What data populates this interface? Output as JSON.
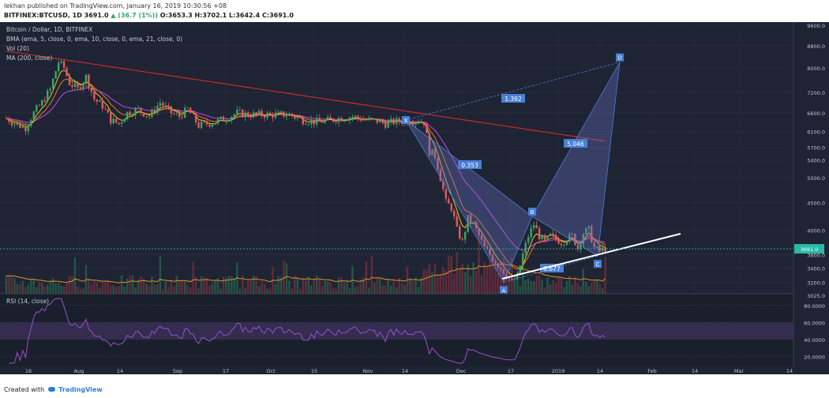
{
  "header": {
    "publish_line": "lekhan published on TradingView.com, January 16, 2019 10:30:56 +08",
    "symbol": "BITFINEX:BTCUSD, 1D",
    "last": "3691.0",
    "change": "▲ (36.7 (1%))",
    "open": "O:3653.3",
    "high": "H:3702.1",
    "low": "L:3642.4",
    "close": "C:3691.0"
  },
  "colors": {
    "background": "#1e2433",
    "up_candle": "#3aa66b",
    "down_candle": "#e05c5c",
    "sma200": "#c82a2a",
    "ema5": "#f0c419",
    "ema10": "#e07a2a",
    "ema21": "#b23fcf",
    "volume_ma": "#e0902a",
    "rsi_line": "#9a4fcf",
    "rsi_band": "#4a3870",
    "pattern_fill": "#6673c8",
    "pattern_line": "#4a7fd4",
    "trendline": "#ffffff",
    "price_marker": "#2bb8a6"
  },
  "chart_data": {
    "type": "candlestick",
    "title": "Bitcoin / Dollar, 1D, BITFINEX",
    "overlays": [
      "BMA (ema, 5, close, 0, ema, 10, close, 0, ema, 21, close, 0)",
      "MA (200, close)"
    ],
    "volume_label": "Vol (20)",
    "y_axis_scale": "log",
    "y_ticks": [
      3025.0,
      3200.0,
      3400.0,
      3600.0,
      4000.0,
      4500.0,
      5000.0,
      5400.0,
      5700.0,
      6100.0,
      6600.0,
      7200.0,
      8000.0,
      8800.0,
      9600.0
    ],
    "y_tick_labels": [
      "3025.0",
      "3200.0",
      "3400.0",
      "3600.0",
      "4000.0",
      "4500.0",
      "5000.0",
      "5400.0",
      "5700.0",
      "6100.0",
      "6600.0",
      "7200.0",
      "8000.0",
      "8800.0",
      "9600.0"
    ],
    "x_tick_labels": [
      "16",
      "Aug",
      "14",
      "Sep",
      "17",
      "Oct",
      "15",
      "Nov",
      "14",
      "Dec",
      "17",
      "2019",
      "14",
      "Feb",
      "14",
      "Mar",
      "14"
    ],
    "last_price": "3691.0",
    "price_anchors": [
      [
        0,
        6450
      ],
      [
        6,
        6300
      ],
      [
        14,
        6200
      ],
      [
        20,
        6600
      ],
      [
        26,
        6900
      ],
      [
        32,
        7300
      ],
      [
        38,
        8200
      ],
      [
        42,
        8000
      ],
      [
        46,
        7500
      ],
      [
        52,
        7300
      ],
      [
        58,
        7700
      ],
      [
        64,
        7000
      ],
      [
        70,
        6800
      ],
      [
        76,
        6400
      ],
      [
        82,
        6300
      ],
      [
        88,
        6600
      ],
      [
        96,
        6700
      ],
      [
        104,
        6500
      ],
      [
        112,
        6900
      ],
      [
        120,
        6600
      ],
      [
        126,
        6500
      ],
      [
        132,
        6700
      ],
      [
        140,
        6250
      ],
      [
        146,
        6300
      ],
      [
        152,
        6350
      ],
      [
        160,
        6450
      ],
      [
        168,
        6600
      ],
      [
        176,
        6550
      ],
      [
        186,
        6550
      ],
      [
        196,
        6550
      ],
      [
        206,
        6550
      ],
      [
        216,
        6400
      ],
      [
        226,
        6350
      ],
      [
        236,
        6400
      ],
      [
        242,
        6450
      ],
      [
        252,
        6500
      ],
      [
        262,
        6400
      ],
      [
        270,
        6380
      ],
      [
        276,
        6300
      ],
      [
        282,
        6350
      ],
      [
        290,
        6380
      ],
      [
        300,
        6400
      ],
      [
        304,
        6350
      ],
      [
        308,
        5600
      ],
      [
        312,
        5500
      ],
      [
        316,
        5000
      ],
      [
        320,
        4500
      ],
      [
        324,
        4400
      ],
      [
        328,
        4000
      ],
      [
        332,
        3800
      ],
      [
        336,
        4200
      ],
      [
        340,
        4100
      ],
      [
        344,
        3900
      ],
      [
        348,
        3700
      ],
      [
        352,
        3600
      ],
      [
        356,
        3500
      ],
      [
        360,
        3400
      ],
      [
        364,
        3300
      ],
      [
        368,
        3200
      ],
      [
        372,
        3280
      ],
      [
        376,
        3600
      ],
      [
        380,
        3900
      ],
      [
        384,
        4100
      ],
      [
        388,
        3900
      ],
      [
        392,
        3800
      ],
      [
        396,
        3900
      ],
      [
        400,
        3850
      ],
      [
        404,
        3800
      ],
      [
        408,
        3850
      ],
      [
        412,
        3900
      ],
      [
        416,
        3700
      ],
      [
        420,
        3950
      ],
      [
        424,
        4000
      ],
      [
        428,
        3700
      ],
      [
        432,
        3650
      ],
      [
        436,
        3700
      ]
    ],
    "harmonic_pattern": {
      "points": [
        {
          "label": "X",
          "price": 6400
        },
        {
          "label": "A",
          "price": 3200
        },
        {
          "label": "B",
          "price": 4240
        },
        {
          "label": "C",
          "price": 3580
        },
        {
          "label": "D",
          "price": 8200
        }
      ],
      "ratios": [
        "1.392",
        "0.353",
        "5.046",
        "0.677"
      ]
    },
    "rsi": {
      "label": "RSI (14, close)",
      "y_ticks": [
        "80.0000",
        "60.0000",
        "40.0000",
        "20.0000"
      ],
      "band": [
        40,
        60
      ]
    }
  },
  "footer": {
    "created_with": "Created with",
    "brand": "TradingView"
  }
}
